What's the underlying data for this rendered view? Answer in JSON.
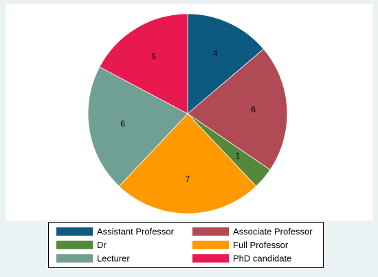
{
  "chart_data": {
    "type": "pie",
    "categories": [
      "Assistant Professor",
      "Associate Professor",
      "Dr",
      "Full Professor",
      "Lecturer",
      "PhD candidate"
    ],
    "values": [
      4,
      6,
      1,
      7,
      6,
      5
    ],
    "colors": [
      "#0d5a80",
      "#b04a55",
      "#55883b",
      "#ff9900",
      "#70a093",
      "#e8194e"
    ],
    "start_angle": 90,
    "direction": "clockwise",
    "legend": "bottom"
  }
}
